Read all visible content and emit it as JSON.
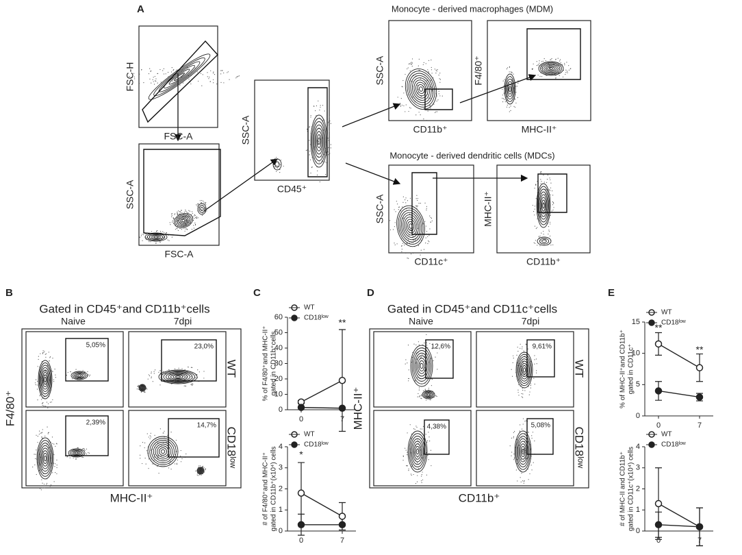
{
  "panel_a": {
    "label": "A",
    "plots": [
      {
        "x_label": "FSC-A",
        "y_label": "FSC-H"
      },
      {
        "x_label": "FSC-A",
        "y_label": "SSC-A"
      },
      {
        "x_label": "CD45⁺",
        "y_label": "SSC-A"
      },
      {
        "x_label": "CD11b⁺",
        "y_label": "SSC-A"
      },
      {
        "x_label": "MHC-II⁺",
        "y_label": "F4/80⁺"
      },
      {
        "x_label": "CD11c⁺",
        "y_label": "SSC-A"
      },
      {
        "x_label": "CD11b⁺",
        "y_label": "MHC-II⁺"
      }
    ],
    "titles": [
      "Monocyte - derived macrophages (MDM)",
      "Monocyte - derived dendritic cells (MDCs)"
    ]
  },
  "panel_b": {
    "label": "B",
    "title": "Gated in CD45⁺and CD11b⁺cells",
    "columns": [
      "Naive",
      "7dpi"
    ],
    "rows": [
      "WT",
      "CD18ˡᵒʷ"
    ],
    "gates": [
      [
        "5,05%",
        "23,0%"
      ],
      [
        "2,39%",
        "14,7%"
      ]
    ],
    "x_label": "MHC-II⁺",
    "y_label": "F4/80⁺"
  },
  "panel_d": {
    "label": "D",
    "title": "Gated in CD45⁺and CD11c⁺cells",
    "columns": [
      "Naive",
      "7dpi"
    ],
    "rows": [
      "WT",
      "CD18ˡᵒʷ"
    ],
    "gates": [
      [
        "12,6%",
        "9,61%"
      ],
      [
        "4,38%",
        "5,08%"
      ]
    ],
    "x_label": "CD11b⁺",
    "y_label": "MHC-II⁺"
  },
  "panel_c": {
    "label": "C"
  },
  "panel_e": {
    "label": "E"
  },
  "line_charts": [
    {
      "type": "line",
      "y_label": [
        "% of F4/80⁺and MHC-II⁺",
        "gated in CD11b⁺cells"
      ],
      "x": [
        0,
        7
      ],
      "xticks": [
        0,
        7
      ],
      "ylim": [
        0,
        60
      ],
      "yticks": [
        0,
        10,
        20,
        30,
        40,
        50,
        60
      ],
      "series": [
        {
          "name": "WT",
          "color": "#222",
          "filled": false,
          "values": [
            5,
            19
          ],
          "errors": [
            1,
            33
          ]
        },
        {
          "name": "CD18ˡᵒʷ",
          "color": "#222",
          "filled": true,
          "values": [
            1.5,
            1
          ],
          "errors": [
            0.5,
            0.5
          ]
        }
      ],
      "annotations": [
        {
          "x": 7,
          "y": 56,
          "text": "**"
        }
      ]
    },
    {
      "type": "line",
      "y_label": [
        "# of F4/80⁺and MHC-II⁺",
        "gated in CD11b⁺(x10⁴) cells"
      ],
      "x": [
        0,
        7
      ],
      "xticks": [
        0,
        7
      ],
      "ylim": [
        0,
        4
      ],
      "yticks": [
        0,
        1,
        2,
        3,
        4
      ],
      "series": [
        {
          "name": "WT",
          "color": "#222",
          "filled": false,
          "values": [
            1.8,
            0.7
          ],
          "errors": [
            1.45,
            0.65
          ]
        },
        {
          "name": "CD18ˡᵒʷ",
          "color": "#222",
          "filled": true,
          "values": [
            0.3,
            0.3
          ],
          "errors": [
            0.5,
            0.05
          ]
        }
      ],
      "annotations": [
        {
          "x": 0,
          "y": 3.6,
          "text": "*"
        }
      ]
    },
    {
      "type": "line",
      "y_label": [
        "% of MHC-II⁺and CD11b⁺",
        "gated in CD11c⁺"
      ],
      "x": [
        0,
        7
      ],
      "xticks": [
        0,
        7
      ],
      "ylim": [
        0,
        15
      ],
      "yticks": [
        0,
        5,
        10,
        15
      ],
      "series": [
        {
          "name": "WT",
          "color": "#222",
          "filled": false,
          "values": [
            11.5,
            7.7
          ],
          "errors": [
            1.8,
            2.2
          ]
        },
        {
          "name": "CD18ˡᵒʷ",
          "color": "#222",
          "filled": true,
          "values": [
            4,
            3
          ],
          "errors": [
            1.5,
            0.6
          ]
        }
      ],
      "annotations": [
        {
          "x": 0,
          "y": 14,
          "text": "**"
        },
        {
          "x": 7,
          "y": 10.5,
          "text": "**"
        }
      ]
    },
    {
      "type": "line",
      "y_label": [
        "# of MHC-II and CD11b⁺",
        "gated in CD11c⁺(x10⁴) cells"
      ],
      "x": [
        0,
        7
      ],
      "xticks": [
        0,
        7
      ],
      "ylim": [
        0,
        4
      ],
      "yticks": [
        0,
        1,
        2,
        3,
        4
      ],
      "series": [
        {
          "name": "WT",
          "color": "#222",
          "filled": false,
          "values": [
            1.3,
            0.2
          ],
          "errors": [
            1.7,
            0.9
          ]
        },
        {
          "name": "CD18ˡᵒʷ",
          "color": "#222",
          "filled": true,
          "values": [
            0.3,
            0.2
          ],
          "errors": [
            0.6,
            0.9
          ]
        }
      ],
      "annotations": []
    }
  ]
}
